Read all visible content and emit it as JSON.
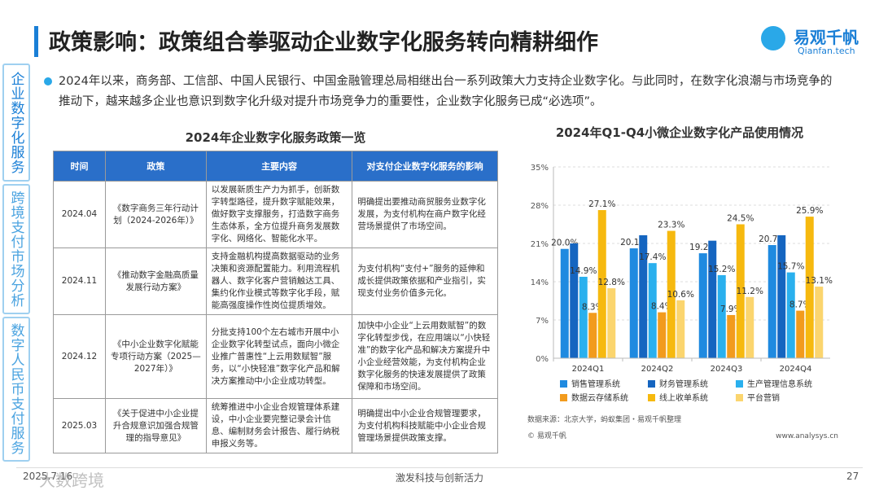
{
  "header": {
    "title": "政策影响：政策组合拳驱动企业数字化服务转向精耕细作",
    "logo": "易观千帆",
    "logo_sub": "Qianfan.tech"
  },
  "side_tabs": [
    "企业数字化服务",
    "跨境支付市场分析",
    "数字人民币支付服务"
  ],
  "bullet": "2024年以来，商务部、工信部、中国人民银行、中国金融管理总局相继出台一系列政策大力支持企业数字化。与此同时，在数字化浪潮与市场竞争的推动下，越来越多企业也意识到数字化升级对提升市场竞争力的重要性，企业数字化服务已成“必选项”。",
  "table": {
    "title": "2024年企业数字化服务政策一览",
    "headers": [
      "时间",
      "政策",
      "主要内容",
      "对支付企业数字化服务的影响"
    ],
    "rows": [
      [
        "2024.04",
        "《数字商务三年行动计划（2024-2026年）》",
        "以发展新质生产力为抓手，创新数字转型路径，提升数字赋能效果，做好数字支撑服务，打造数字商务生态体系，全方位提升商务发展数字化、网络化、智能化水平。",
        "明确提出要推动商贸服务业数字化发展，为支付机构在商户数字化经营场景提供了市场空间。"
      ],
      [
        "2024.11",
        "《推动数字金融高质量发展行动方案》",
        "支持金融机构提高数据驱动的业务决策和资源配置能力。利用流程机器人、数字化客户营销触达工具、集约化作业模式等数字化手段，赋能高强度操作性岗位提质增效。",
        "为支付机构“支付+”服务的延伸和成长提供政策依据和产业指引，实现支付业务价值多元化。"
      ],
      [
        "2024.12",
        "《中小企业数字化赋能专项行动方案（2025—2027年）》",
        "分批支持100个左右城市开展中小企业数字化转型试点，面向小微企业推广普惠性“上云用数赋智”服务，以“小快轻准”数字化产品和解决方案推动中小企业成功转型。",
        "加快中小企业“上云用数赋智”的数字化转型步伐，在应用端以“小快轻准”的数字化产品和解决方案提升中小企业经营效能，为支付机构企业数字化服务的快速发展提供了政策保障和市场空间。"
      ],
      [
        "2025.03",
        "《关于促进中小企业提升合规意识加强合规管理的指导意见》",
        "统筹推进中小企业合规管理体系建设，中小企业要完整记录会计信息、编制财务会计报告、履行纳税申报义务等。",
        "明确提出中小企业合规管理要求，为支付机构科技赋能中小企业合规管理场景提供政策支撑。"
      ]
    ]
  },
  "chart_data": {
    "type": "bar",
    "title": "2024年Q1-Q4小微企业数字化产品使用情况",
    "categories": [
      "2024Q1",
      "2024Q2",
      "2024Q3",
      "2024Q4"
    ],
    "ylim": [
      0,
      35
    ],
    "yticks": [
      {
        "value": 0,
        "label": "0%"
      },
      {
        "value": 7,
        "label": "7%"
      },
      {
        "value": 14,
        "label": "14%"
      },
      {
        "value": 21,
        "label": "21%"
      },
      {
        "value": 28,
        "label": "28%"
      },
      {
        "value": 35,
        "label": "35%"
      }
    ],
    "grid": true,
    "series": [
      {
        "name": "销售管理系统",
        "color": "#1f8ae0",
        "values": [
          20.0,
          20.1,
          19.2,
          20.7
        ],
        "value_labels": [
          "20.0%",
          "20.1%",
          "19.2%",
          "20.7%"
        ]
      },
      {
        "name": "财务管理系统",
        "color": "#1565c0",
        "values": [
          21.0,
          22.5,
          21.5,
          22.5
        ]
      },
      {
        "name": "生产管理信息系统",
        "color": "#2ab0ee",
        "values": [
          14.9,
          17.4,
          15.2,
          15.7
        ],
        "value_labels": [
          "14.9%",
          "17.4%",
          "15.2%",
          "15.7%"
        ]
      },
      {
        "name": "数据云存储系统",
        "color": "#f29b1d",
        "values": [
          8.3,
          8.4,
          7.9,
          8.7
        ],
        "value_labels": [
          "8.3%",
          "8.4%",
          "7.9%",
          "8.7%"
        ]
      },
      {
        "name": "线上收单系统",
        "color": "#f6b90f",
        "values": [
          27.1,
          23.3,
          24.5,
          25.9
        ],
        "value_labels": [
          "27.1%",
          "23.3%",
          "24.5%",
          "25.9%"
        ]
      },
      {
        "name": "平台营销",
        "color": "#fbd56e",
        "values": [
          12.8,
          10.6,
          11.2,
          13.1
        ],
        "value_labels": [
          "12.8%",
          "10.6%",
          "11.2%",
          "13.1%"
        ]
      }
    ],
    "source": "数据来源：北京大学，蚂蚁集团・易观千帆整理",
    "copyright": "© 易观千帆",
    "site": "www.analysys.cn"
  },
  "footer": {
    "date": "2025.7.16",
    "center": "激发科技与创新活力",
    "page": "27",
    "watermark": "大数跨境"
  }
}
